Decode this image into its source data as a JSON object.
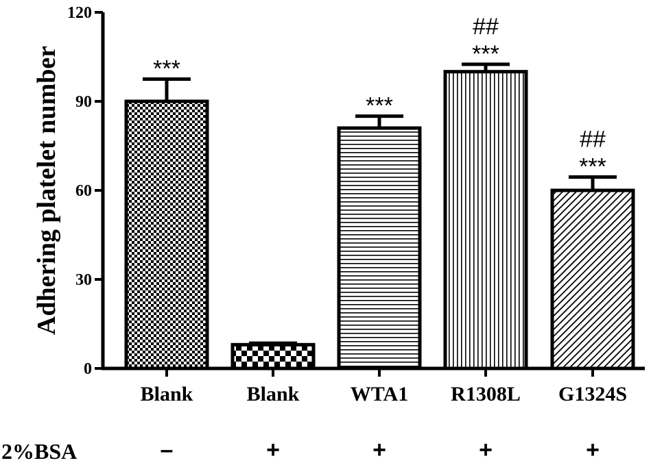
{
  "chart_data": {
    "type": "bar",
    "ylabel": "Adhering platelet number",
    "ylim": [
      0,
      120
    ],
    "yticks": [
      0,
      30,
      60,
      90,
      120
    ],
    "categories": [
      "Blank",
      "Blank",
      "WTA1",
      "R1308L",
      "G1324S"
    ],
    "values": [
      90,
      8,
      81,
      100,
      60
    ],
    "errors": [
      7.5,
      0.5,
      4,
      2.5,
      4.5
    ],
    "patterns": [
      "checker-fine",
      "checker-coarse",
      "horizontal",
      "vertical",
      "diagonal"
    ],
    "annotations": [
      [
        "***"
      ],
      [],
      [
        "***"
      ],
      [
        "##",
        "***"
      ],
      [
        "##",
        "***"
      ]
    ],
    "condition_label": "2%BSA",
    "conditions": [
      "–",
      "+",
      "+",
      "+",
      "+"
    ],
    "colors": {
      "bar_fill": "#ffffff",
      "ink": "#000000"
    }
  }
}
